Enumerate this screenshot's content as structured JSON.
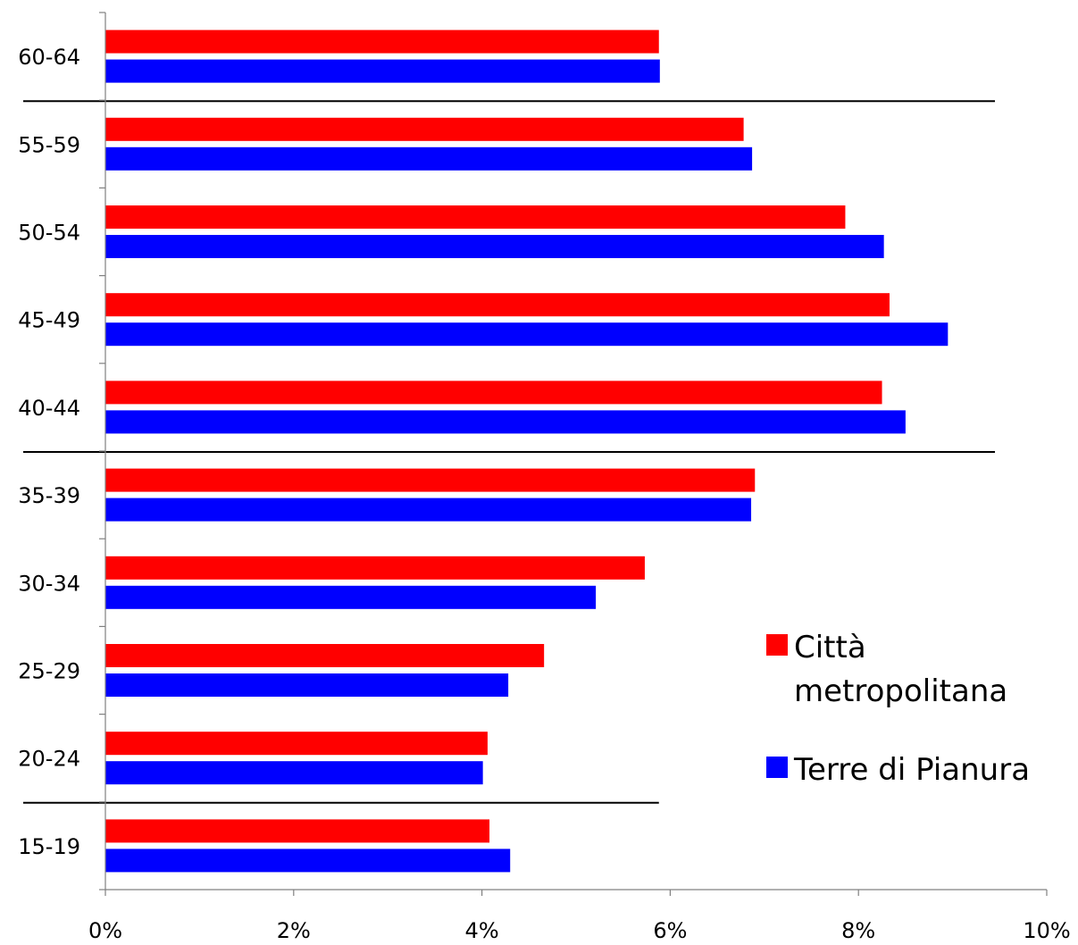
{
  "chart_data": {
    "type": "bar",
    "orientation": "horizontal",
    "title": "",
    "xlabel": "",
    "ylabel": "",
    "categories": [
      "15-19",
      "20-24",
      "25-29",
      "30-34",
      "35-39",
      "40-44",
      "45-49",
      "50-54",
      "55-59",
      "60-64"
    ],
    "series": [
      {
        "name": "Città metropolitana",
        "color": "#ff0000",
        "values": [
          4.08,
          4.06,
          4.66,
          5.73,
          6.9,
          8.25,
          8.33,
          7.86,
          6.78,
          5.88
        ]
      },
      {
        "name": "Terre di Pianura",
        "color": "#0000ff",
        "values": [
          4.3,
          4.01,
          4.28,
          5.21,
          6.86,
          8.5,
          8.95,
          8.27,
          6.87,
          5.89
        ]
      }
    ],
    "xlim": [
      0,
      10
    ],
    "xticks": [
      0,
      2,
      4,
      6,
      8,
      10
    ],
    "xtick_labels": [
      "0%",
      "2%",
      "4%",
      "6%",
      "8%",
      "10%"
    ],
    "grid": false,
    "legend": {
      "placement": "right",
      "entries": [
        {
          "lines": [
            "Città",
            "metropolitana"
          ],
          "color": "#ff0000"
        },
        {
          "lines": [
            "Terre di Pianura"
          ],
          "color": "#0000ff"
        }
      ]
    },
    "separators": [
      {
        "between": [
          "15-19",
          "20-24"
        ],
        "extent_x": 5.88
      },
      {
        "between": [
          "35-39",
          "40-44"
        ],
        "extent_x": 9.45
      },
      {
        "between": [
          "55-59",
          "60-64"
        ],
        "extent_x": 9.45
      }
    ]
  }
}
